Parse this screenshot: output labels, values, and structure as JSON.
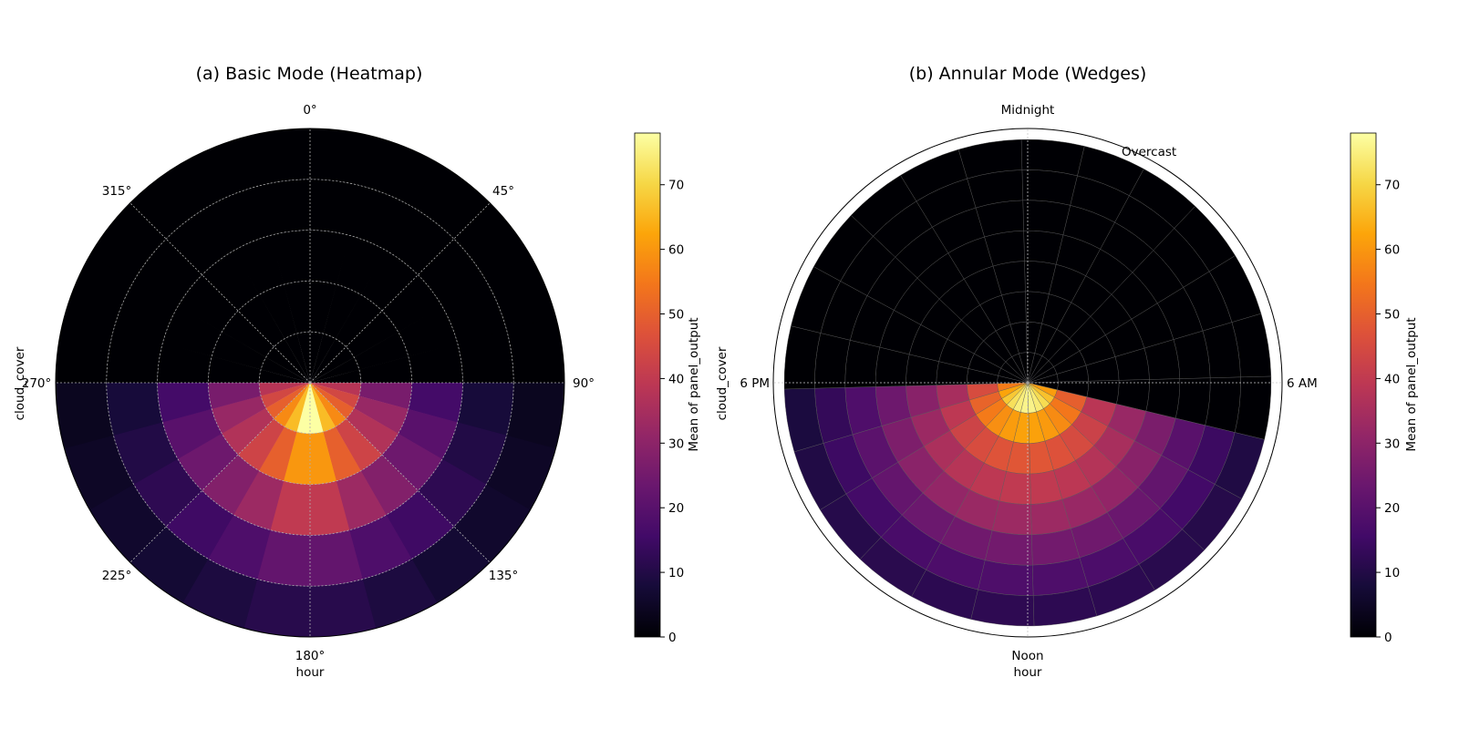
{
  "chart_data": [
    {
      "type": "heatmap",
      "title": "(a) Basic Mode (Heatmap)",
      "projection": "polar",
      "xlabel": "hour",
      "ylabel": "cloud_cover",
      "angular_tick_labels": [
        "0°",
        "45°",
        "90°",
        "135°",
        "180°",
        "225°",
        "270°",
        "315°"
      ],
      "radial_bins": 5,
      "angular_bins": 24,
      "grid": true,
      "colormap": "inferno",
      "colorbar": {
        "label": "Mean of panel_output",
        "ticks": [
          "0",
          "10",
          "20",
          "30",
          "40",
          "50",
          "60",
          "70"
        ],
        "range": [
          0,
          78
        ]
      },
      "radial_profile_by_ring": [
        [
          78,
          66,
          58,
          50,
          44,
          38
        ],
        [
          60,
          50,
          43,
          37,
          32,
          26
        ],
        [
          40,
          33,
          28,
          24,
          20,
          16
        ],
        [
          22,
          18,
          15,
          12,
          10,
          8
        ],
        [
          11,
          9,
          7,
          6,
          5,
          4
        ]
      ],
      "night_value": 0
    },
    {
      "type": "heatmap",
      "title": "(b) Annular Mode (Wedges)",
      "projection": "polar",
      "xlabel": "hour",
      "ylabel": "cloud_cover",
      "angular_tick_labels": [
        "Midnight",
        "6 AM",
        "Noon",
        "6 PM"
      ],
      "outer_label": "Overcast",
      "radial_bins": 8,
      "angular_bins": 24,
      "grid": true,
      "colormap": "inferno",
      "colorbar": {
        "label": "Mean of panel_output",
        "ticks": [
          "0",
          "10",
          "20",
          "30",
          "40",
          "50",
          "60",
          "70"
        ],
        "range": [
          0,
          78
        ]
      },
      "ring_values": [
        76,
        62,
        48,
        40,
        33,
        25,
        18,
        12
      ],
      "night_value": 0
    }
  ]
}
